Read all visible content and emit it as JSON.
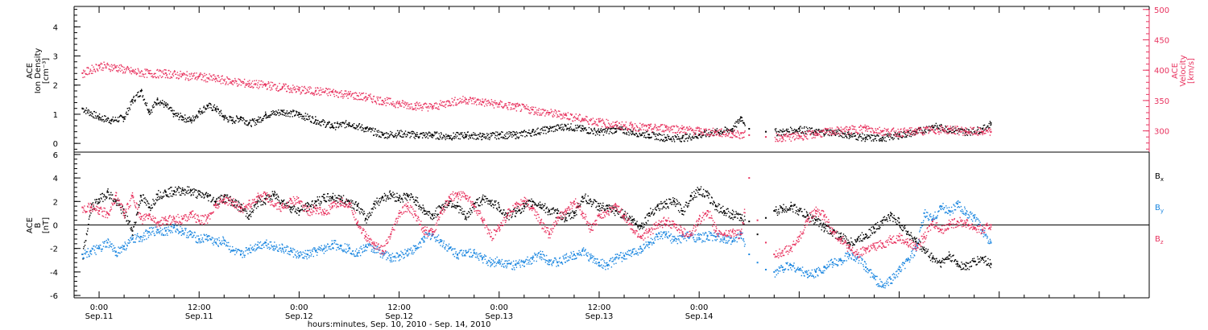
{
  "colors": {
    "black": "#000000",
    "pink": "#e8335f",
    "blue": "#1a86e0"
  },
  "chart_data": [
    {
      "type": "scatter",
      "panel": "top",
      "ylabel_lines": [
        "ACE",
        "Ion Density",
        "[cm⁻³]"
      ],
      "ylabel2_lines": [
        "ACE",
        "Velocity",
        "[km/s]"
      ],
      "ylim": [
        -0.3,
        4.7
      ],
      "yticks": [
        0,
        1,
        2,
        3,
        4
      ],
      "ytick_labels": [
        "0",
        "1",
        "2",
        "3",
        "4"
      ],
      "y2lim": [
        265,
        505
      ],
      "y2ticks": [
        300,
        350,
        400,
        450,
        500
      ],
      "y2tick_labels": [
        "300",
        "350",
        "400",
        "450",
        "500"
      ],
      "series": [
        {
          "color": "#000000",
          "axis": "left",
          "x": [
            -2.0,
            0.0,
            1.5,
            3.0,
            4.0,
            5.0,
            6.0,
            7.0,
            8.0,
            9.0,
            10.0,
            11.0,
            12.0,
            13.0,
            14.0,
            15.0,
            16.0,
            17.0,
            18.0,
            19.0,
            20.0,
            22.0,
            24.0,
            26.0,
            28.0,
            30.0,
            32.0,
            34.0,
            36.0,
            38.0,
            40.0,
            42.0,
            44.0,
            46.0,
            48.0,
            50.0,
            52.0,
            54.0,
            56.0,
            58.0,
            60.0,
            62.0,
            64.0,
            66.0,
            68.0,
            70.0,
            72.0,
            74.0,
            76.0,
            77.0,
            78.0,
            80.0,
            82.0,
            84.0,
            86.0,
            88.0,
            90.0,
            92.0,
            94.0,
            96.0,
            98.0,
            100.0,
            102.0,
            104.0,
            106.0,
            107.0
          ],
          "y": [
            1.2,
            0.9,
            0.8,
            0.9,
            1.5,
            1.8,
            1.1,
            1.5,
            1.3,
            1.0,
            0.9,
            0.8,
            1.1,
            1.3,
            1.2,
            0.9,
            0.8,
            0.9,
            0.7,
            0.8,
            1.0,
            1.1,
            1.0,
            0.8,
            0.6,
            0.7,
            0.5,
            0.3,
            0.35,
            0.3,
            0.3,
            0.25,
            0.3,
            0.25,
            0.3,
            0.3,
            0.4,
            0.5,
            0.6,
            0.5,
            0.4,
            0.5,
            0.4,
            0.3,
            0.2,
            0.2,
            0.3,
            0.4,
            0.5,
            0.9,
            0.5,
            0.4,
            0.4,
            0.5,
            0.4,
            0.4,
            0.3,
            0.2,
            0.2,
            0.3,
            0.4,
            0.6,
            0.5,
            0.4,
            0.5,
            0.7
          ]
        },
        {
          "color": "#e8335f",
          "axis": "right",
          "x": [
            -2.0,
            0.0,
            2.0,
            4.0,
            6.0,
            8.0,
            10.0,
            12.0,
            14.0,
            16.0,
            18.0,
            20.0,
            22.0,
            24.0,
            26.0,
            28.0,
            30.0,
            32.0,
            34.0,
            36.0,
            38.0,
            40.0,
            42.0,
            44.0,
            46.0,
            48.0,
            50.0,
            52.0,
            54.0,
            56.0,
            58.0,
            60.0,
            62.0,
            64.0,
            66.0,
            68.0,
            70.0,
            72.0,
            74.0,
            76.0,
            78.0,
            80.0,
            82.0,
            84.0,
            86.0,
            88.0,
            90.0,
            92.0,
            94.0,
            96.0,
            98.0,
            100.0,
            102.0,
            104.0,
            106.0,
            107.0
          ],
          "y": [
            395,
            408,
            405,
            398,
            395,
            395,
            392,
            390,
            386,
            382,
            378,
            376,
            372,
            368,
            366,
            364,
            360,
            356,
            350,
            345,
            342,
            340,
            348,
            352,
            348,
            344,
            340,
            335,
            330,
            326,
            320,
            315,
            310,
            308,
            305,
            306,
            303,
            300,
            298,
            296,
            293,
            290,
            290,
            292,
            296,
            300,
            302,
            305,
            300,
            298,
            300,
            302,
            303,
            300,
            299,
            298
          ]
        }
      ]
    },
    {
      "type": "scatter",
      "panel": "bottom",
      "ylabel_lines": [
        "ACE",
        "B",
        "[nT]"
      ],
      "ylim": [
        -6.2,
        6.2
      ],
      "yticks": [
        -6,
        -4,
        -2,
        0,
        2,
        4,
        6
      ],
      "ytick_labels": [
        "-6",
        "-4",
        "-2",
        "0",
        "2",
        "4",
        "6"
      ],
      "series": [
        {
          "name": "Bx",
          "legend_main": "B",
          "legend_sub": "x",
          "color": "#000000",
          "x": [
            -2.0,
            -1.0,
            0.0,
            1.0,
            2.0,
            3.0,
            4.0,
            5.0,
            6.0,
            7.0,
            8.0,
            9.0,
            10.0,
            11.0,
            12.0,
            13.0,
            14.0,
            15.0,
            16.0,
            17.0,
            18.0,
            19.0,
            20.0,
            21.0,
            22.0,
            23.0,
            24.0,
            25.0,
            26.0,
            27.0,
            28.0,
            29.0,
            30.0,
            31.0,
            32.0,
            33.0,
            34.0,
            35.0,
            36.0,
            37.0,
            38.0,
            39.0,
            40.0,
            41.0,
            42.0,
            43.0,
            44.0,
            45.0,
            46.0,
            47.0,
            48.0,
            49.0,
            50.0,
            51.0,
            52.0,
            53.0,
            54.0,
            55.0,
            56.0,
            57.0,
            58.0,
            59.0,
            60.0,
            61.0,
            62.0,
            63.0,
            64.0,
            65.0,
            66.0,
            67.0,
            68.0,
            69.0,
            70.0,
            71.0,
            72.0,
            73.0,
            74.0,
            75.0,
            76.0,
            77.0,
            78.0,
            79.0,
            80.0,
            81.0,
            82.0,
            83.0,
            84.0,
            85.0,
            86.0,
            87.0,
            88.0,
            89.0,
            90.0,
            91.0,
            92.0,
            93.0,
            94.0,
            95.0,
            96.0,
            97.0,
            98.0,
            99.0,
            100.0,
            101.0,
            102.0,
            103.0,
            104.0,
            105.0,
            106.0,
            107.0
          ],
          "y": [
            -2.5,
            1.5,
            2.2,
            2.8,
            2.0,
            1.0,
            -0.5,
            2.5,
            1.5,
            2.6,
            2.8,
            2.9,
            3.0,
            2.9,
            2.6,
            2.5,
            2.0,
            2.4,
            2.0,
            1.5,
            0.8,
            2.0,
            2.2,
            2.6,
            2.0,
            1.5,
            1.2,
            1.6,
            2.0,
            2.3,
            2.4,
            2.2,
            2.0,
            1.6,
            0.5,
            1.8,
            2.4,
            2.6,
            2.3,
            2.5,
            2.1,
            1.2,
            0.8,
            1.5,
            2.0,
            1.6,
            0.6,
            1.8,
            2.2,
            2.0,
            1.5,
            0.8,
            1.2,
            1.6,
            2.0,
            1.7,
            1.2,
            1.0,
            0.6,
            1.0,
            2.4,
            2.0,
            1.6,
            1.4,
            1.2,
            0.9,
            0.4,
            -0.1,
            1.0,
            1.6,
            1.8,
            2.0,
            1.2,
            2.5,
            3.0,
            2.5,
            1.6,
            1.2,
            0.9,
            0.6,
            0.3,
            -0.8,
            0.6,
            1.2,
            1.4,
            1.6,
            1.2,
            0.8,
            0.4,
            -0.2,
            -0.6,
            -1.0,
            -1.5,
            -1.2,
            -0.8,
            -0.3,
            0.4,
            0.8,
            0.2,
            -0.6,
            -1.4,
            -2.1,
            -2.8,
            -3.2,
            -2.6,
            -3.3,
            -3.5,
            -3.1,
            -2.8,
            -3.3
          ]
        },
        {
          "name": "By",
          "legend_main": "B",
          "legend_sub": "y",
          "color": "#1a86e0",
          "x": [
            -2.0,
            -1.0,
            0.0,
            1.0,
            2.0,
            3.0,
            4.0,
            5.0,
            6.0,
            7.0,
            8.0,
            9.0,
            10.0,
            11.0,
            12.0,
            13.0,
            14.0,
            15.0,
            16.0,
            17.0,
            18.0,
            19.0,
            20.0,
            21.0,
            22.0,
            23.0,
            24.0,
            25.0,
            26.0,
            27.0,
            28.0,
            29.0,
            30.0,
            31.0,
            32.0,
            33.0,
            34.0,
            35.0,
            36.0,
            37.0,
            38.0,
            39.0,
            40.0,
            41.0,
            42.0,
            43.0,
            44.0,
            45.0,
            46.0,
            47.0,
            48.0,
            49.0,
            50.0,
            51.0,
            52.0,
            53.0,
            54.0,
            55.0,
            56.0,
            57.0,
            58.0,
            59.0,
            60.0,
            61.0,
            62.0,
            63.0,
            64.0,
            65.0,
            66.0,
            67.0,
            68.0,
            69.0,
            70.0,
            71.0,
            72.0,
            73.0,
            74.0,
            75.0,
            76.0,
            77.0,
            78.0,
            79.0,
            80.0,
            81.0,
            82.0,
            83.0,
            84.0,
            85.0,
            86.0,
            87.0,
            88.0,
            89.0,
            90.0,
            91.0,
            92.0,
            93.0,
            94.0,
            95.0,
            96.0,
            97.0,
            98.0,
            99.0,
            100.0,
            101.0,
            102.0,
            103.0,
            104.0,
            105.0,
            106.0,
            107.0
          ],
          "y": [
            -2.5,
            -2.2,
            -2.0,
            -1.5,
            -2.3,
            -1.8,
            -1.2,
            -1.0,
            -0.6,
            -0.4,
            -0.5,
            -0.2,
            -0.5,
            -0.8,
            -1.2,
            -1.0,
            -1.5,
            -1.3,
            -2.2,
            -2.5,
            -2.0,
            -1.7,
            -1.5,
            -1.8,
            -2.0,
            -2.2,
            -2.6,
            -2.5,
            -2.2,
            -2.0,
            -1.6,
            -1.8,
            -2.0,
            -2.4,
            -1.8,
            -2.0,
            -2.4,
            -2.8,
            -2.6,
            -2.2,
            -2.0,
            -1.0,
            -0.8,
            -1.4,
            -2.0,
            -2.5,
            -2.2,
            -2.4,
            -2.8,
            -3.2,
            -3.0,
            -3.3,
            -3.4,
            -3.2,
            -2.8,
            -2.5,
            -3.0,
            -3.2,
            -2.8,
            -2.5,
            -2.2,
            -2.8,
            -3.2,
            -3.4,
            -2.8,
            -2.6,
            -2.3,
            -2.0,
            -1.5,
            -1.0,
            -0.8,
            -1.3,
            -1.0,
            -0.9,
            -1.1,
            -0.9,
            -1.0,
            -1.2,
            -1.4,
            -0.7,
            -2.5,
            -3.2,
            -3.8,
            -4.0,
            -3.6,
            -3.4,
            -3.8,
            -4.2,
            -4.0,
            -3.6,
            -3.2,
            -3.0,
            -2.5,
            -2.8,
            -3.6,
            -4.5,
            -5.2,
            -4.6,
            -3.8,
            -3.0,
            -2.0,
            1.0,
            0.5,
            1.6,
            1.2,
            1.8,
            1.0,
            0.6,
            -0.5,
            -1.5
          ]
        },
        {
          "name": "Bz",
          "legend_main": "B",
          "legend_sub": "z",
          "color": "#e8335f",
          "x": [
            -2.0,
            -1.0,
            0.0,
            1.0,
            2.0,
            3.0,
            4.0,
            5.0,
            6.0,
            7.0,
            8.0,
            9.0,
            10.0,
            11.0,
            12.0,
            13.0,
            14.0,
            15.0,
            16.0,
            17.0,
            18.0,
            19.0,
            20.0,
            21.0,
            22.0,
            23.0,
            24.0,
            25.0,
            26.0,
            27.0,
            28.0,
            29.0,
            30.0,
            31.0,
            32.0,
            33.0,
            34.0,
            35.0,
            36.0,
            37.0,
            38.0,
            39.0,
            40.0,
            41.0,
            42.0,
            43.0,
            44.0,
            45.0,
            46.0,
            47.0,
            48.0,
            49.0,
            50.0,
            51.0,
            52.0,
            53.0,
            54.0,
            55.0,
            56.0,
            57.0,
            58.0,
            59.0,
            60.0,
            61.0,
            62.0,
            63.0,
            64.0,
            65.0,
            66.0,
            67.0,
            68.0,
            69.0,
            70.0,
            71.0,
            72.0,
            73.0,
            74.0,
            75.0,
            76.0,
            77.0,
            78.0,
            79.0,
            80.0,
            81.0,
            82.0,
            83.0,
            84.0,
            85.0,
            86.0,
            87.0,
            88.0,
            89.0,
            90.0,
            91.0,
            92.0,
            93.0,
            94.0,
            95.0,
            96.0,
            97.0,
            98.0,
            99.0,
            100.0,
            101.0,
            102.0,
            103.0,
            104.0,
            105.0,
            106.0,
            107.0
          ],
          "y": [
            1.5,
            1.5,
            1.2,
            1.0,
            2.5,
            1.0,
            2.5,
            0.5,
            0.8,
            0.2,
            0.4,
            0.6,
            0.5,
            1.0,
            0.4,
            0.6,
            1.8,
            2.2,
            2.0,
            1.4,
            1.8,
            2.4,
            2.6,
            1.6,
            1.5,
            2.2,
            2.0,
            1.2,
            1.4,
            1.0,
            1.6,
            2.0,
            1.8,
            0.2,
            -1.0,
            -1.6,
            -2.2,
            -0.8,
            1.0,
            1.6,
            0.8,
            -0.5,
            -0.6,
            1.0,
            2.4,
            2.6,
            2.5,
            1.6,
            0.4,
            -1.0,
            -0.2,
            1.0,
            1.8,
            2.0,
            1.4,
            0.2,
            -0.8,
            0.6,
            1.2,
            2.0,
            1.0,
            -0.4,
            0.8,
            1.2,
            1.6,
            0.8,
            -0.4,
            -1.0,
            -0.5,
            0.0,
            0.4,
            0.0,
            -0.6,
            -0.8,
            0.5,
            1.2,
            -0.5,
            -0.8,
            -0.6,
            -0.8,
            4.0,
            0.4,
            -1.5,
            -2.5,
            -2.2,
            -2.0,
            -1.0,
            0.5,
            1.2,
            0.8,
            -0.6,
            -1.2,
            -2.0,
            -2.5,
            -2.0,
            -1.8,
            -1.6,
            -1.2,
            -1.0,
            -1.5,
            -1.8,
            -1.0,
            0.3,
            -0.4,
            0.1,
            0.3,
            0.2,
            -0.2,
            -0.4,
            0.0
          ]
        }
      ]
    }
  ],
  "x_axis": {
    "range_hours": [
      -3,
      126
    ],
    "ticks": [
      {
        "hour": 0,
        "time": "0:00",
        "date": "Sep.11"
      },
      {
        "hour": 12,
        "time": "12:00",
        "date": "Sep.11"
      },
      {
        "hour": 24,
        "time": "0:00",
        "date": "Sep.12"
      },
      {
        "hour": 36,
        "time": "12:00",
        "date": "Sep.12"
      },
      {
        "hour": 48,
        "time": "0:00",
        "date": "Sep.13"
      },
      {
        "hour": 60,
        "time": "12:00",
        "date": "Sep.13"
      },
      {
        "hour": 72,
        "time": "0:00",
        "date": "Sep.14"
      }
    ],
    "title": "hours:minutes, Sep. 10, 2010 - Sep. 14, 2010"
  }
}
